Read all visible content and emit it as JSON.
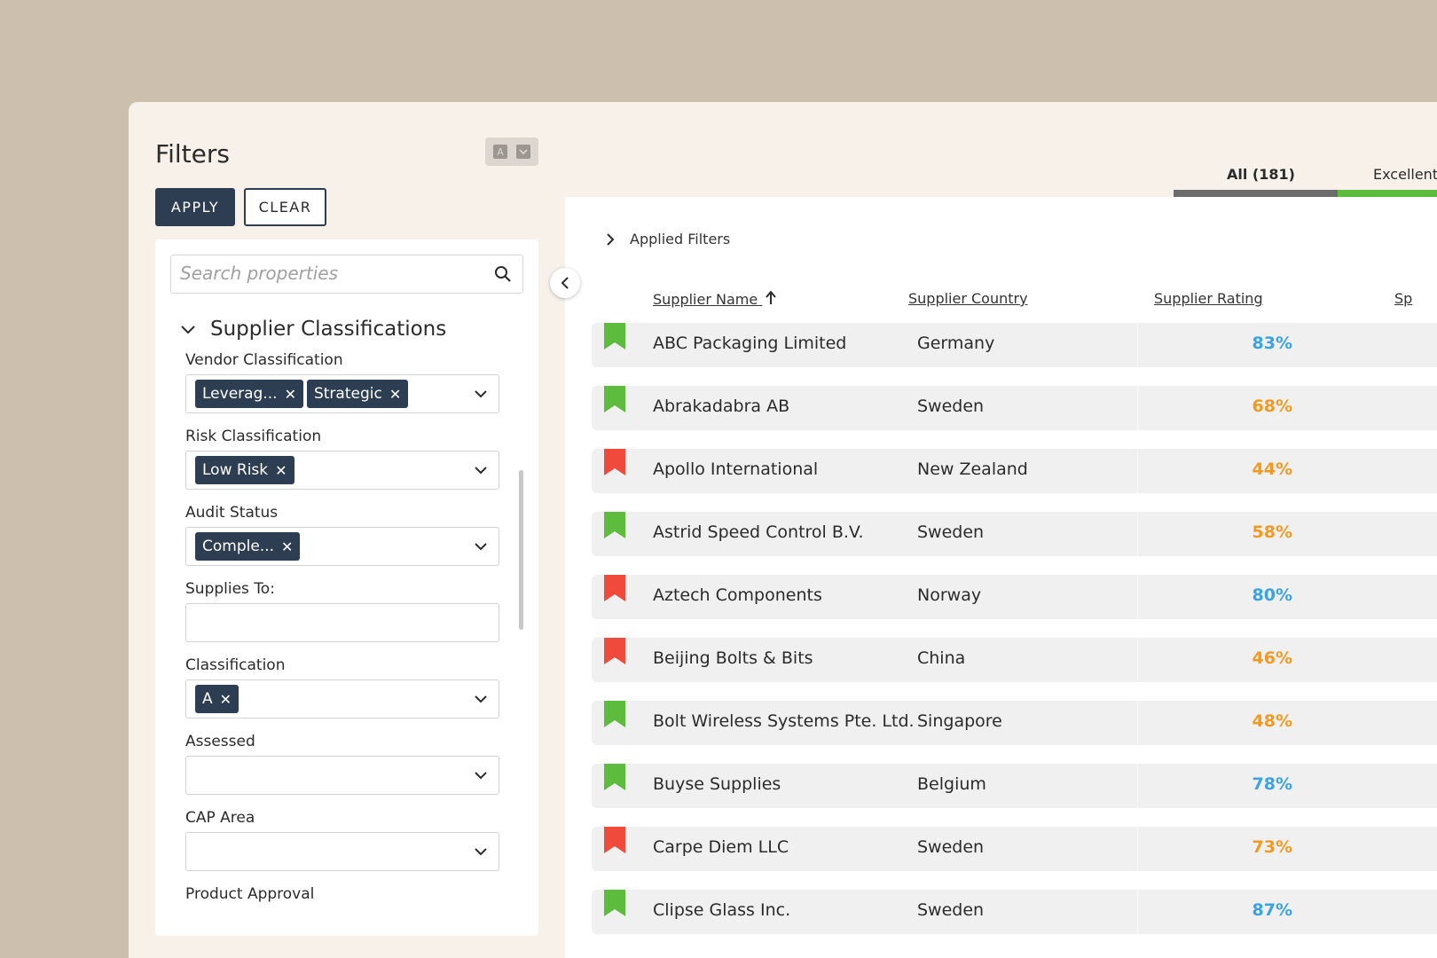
{
  "sidebar": {
    "title": "Filters",
    "mini_toggle": [
      "A",
      "v"
    ],
    "apply_label": "APPLY",
    "clear_label": "CLEAR",
    "search": {
      "placeholder": "Search properties",
      "icon": "search-icon"
    },
    "section": "Supplier Classifications",
    "fields": [
      {
        "label": "Vendor Classification",
        "chips": [
          "Leverag...",
          "Strategic"
        ],
        "dropdown": true
      },
      {
        "label": "Risk Classification",
        "chips": [
          "Low Risk"
        ],
        "dropdown": true
      },
      {
        "label": "Audit Status",
        "chips": [
          "Comple..."
        ],
        "dropdown": true
      },
      {
        "label": "Supplies To:",
        "chips": [],
        "dropdown": false
      },
      {
        "label": "Classification",
        "chips": [
          "A"
        ],
        "dropdown": true
      },
      {
        "label": "Assessed",
        "chips": [],
        "dropdown": true
      },
      {
        "label": "CAP Area",
        "chips": [],
        "dropdown": true
      },
      {
        "label": "Product Approval",
        "chips": [],
        "dropdown": false
      }
    ]
  },
  "tabs": [
    {
      "label": "All (181)",
      "active": true
    },
    {
      "label": "Excellent",
      "active": false
    }
  ],
  "main": {
    "applied_filters": "Applied Filters",
    "columns": [
      "Supplier Name",
      "Supplier Country",
      "Supplier Rating",
      "Sp"
    ],
    "rows": [
      {
        "name": "ABC Packaging Limited",
        "country": "Germany",
        "rating": "83%",
        "flag": "green",
        "rating_color": "#3aa3e3"
      },
      {
        "name": "Abrakadabra AB",
        "country": "Sweden",
        "rating": "68%",
        "flag": "green",
        "rating_color": "#f29a1f"
      },
      {
        "name": "Apollo International",
        "country": "New Zealand",
        "rating": "44%",
        "flag": "red",
        "rating_color": "#f29a1f"
      },
      {
        "name": "Astrid Speed Control B.V.",
        "country": "Sweden",
        "rating": "58%",
        "flag": "green",
        "rating_color": "#f29a1f"
      },
      {
        "name": "Aztech Components",
        "country": "Norway",
        "rating": "80%",
        "flag": "red",
        "rating_color": "#3aa3e3"
      },
      {
        "name": "Beijing Bolts & Bits",
        "country": "China",
        "rating": "46%",
        "flag": "red",
        "rating_color": "#f29a1f"
      },
      {
        "name": "Bolt Wireless Systems Pte. Ltd.",
        "country": "Singapore",
        "rating": "48%",
        "flag": "green",
        "rating_color": "#f29a1f"
      },
      {
        "name": "Buyse Supplies",
        "country": "Belgium",
        "rating": "78%",
        "flag": "green",
        "rating_color": "#3aa3e3"
      },
      {
        "name": "Carpe Diem LLC",
        "country": "Sweden",
        "rating": "73%",
        "flag": "red",
        "rating_color": "#f29a1f"
      },
      {
        "name": "Clipse Glass Inc.",
        "country": "Sweden",
        "rating": "87%",
        "flag": "green",
        "rating_color": "#3aa3e3"
      }
    ]
  },
  "colors": {
    "flag_green": "#5dbb3d",
    "flag_red": "#f04a3c",
    "primary": "#2d3e52"
  }
}
